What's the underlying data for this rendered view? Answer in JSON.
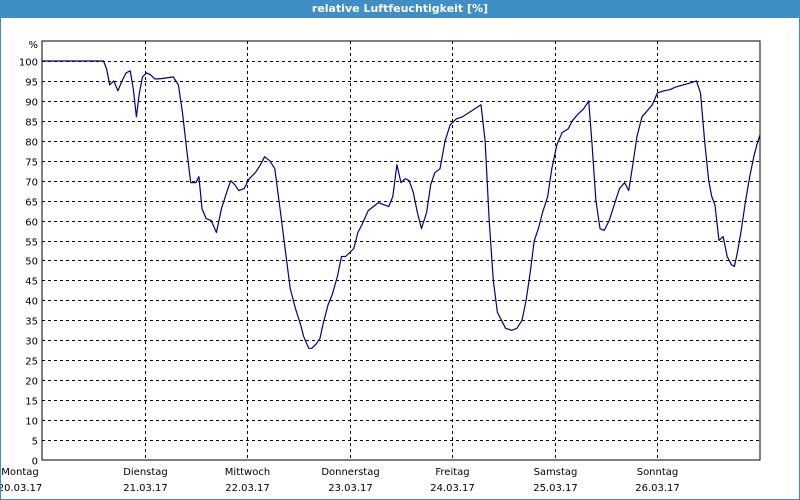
{
  "chart_data": {
    "type": "line",
    "title": "relative Luftfeuchtigkeit [%]",
    "ylabel": "%",
    "ylim": [
      0,
      105
    ],
    "yticks": [
      0,
      5,
      10,
      15,
      20,
      25,
      30,
      35,
      40,
      45,
      50,
      55,
      60,
      65,
      70,
      75,
      80,
      85,
      90,
      95,
      100
    ],
    "grid": true,
    "xlim": [
      0,
      7
    ],
    "x_ticks": [
      {
        "day": "Montag",
        "date": "20.03.17",
        "x": 0
      },
      {
        "day": "Dienstag",
        "date": "21.03.17",
        "x": 1
      },
      {
        "day": "Mittwoch",
        "date": "22.03.17",
        "x": 2
      },
      {
        "day": "Donnerstag",
        "date": "23.03.17",
        "x": 3
      },
      {
        "day": "Freitag",
        "date": "24.03.17",
        "x": 4
      },
      {
        "day": "Samstag",
        "date": "25.03.17",
        "x": 5
      },
      {
        "day": "Sonntag",
        "date": "26.03.17",
        "x": 6
      }
    ],
    "series": [
      {
        "color": "#00008b",
        "points": [
          [
            0,
            100
          ],
          [
            0.6,
            100
          ],
          [
            0.63,
            98
          ],
          [
            0.66,
            94
          ],
          [
            0.7,
            95
          ],
          [
            0.74,
            92.5
          ],
          [
            0.78,
            95
          ],
          [
            0.82,
            97
          ],
          [
            0.86,
            97.5
          ],
          [
            0.89,
            93
          ],
          [
            0.92,
            86
          ],
          [
            0.95,
            92
          ],
          [
            0.98,
            96
          ],
          [
            1.02,
            97
          ],
          [
            1.06,
            96.5
          ],
          [
            1.1,
            95.5
          ],
          [
            1.14,
            95.5
          ],
          [
            1.2,
            95.7
          ],
          [
            1.28,
            96
          ],
          [
            1.33,
            94
          ],
          [
            1.37,
            87
          ],
          [
            1.41,
            78
          ],
          [
            1.45,
            69.5
          ],
          [
            1.5,
            69.5
          ],
          [
            1.53,
            71
          ],
          [
            1.56,
            63
          ],
          [
            1.6,
            60.5
          ],
          [
            1.65,
            60
          ],
          [
            1.7,
            57
          ],
          [
            1.75,
            63
          ],
          [
            1.8,
            67
          ],
          [
            1.84,
            70
          ],
          [
            1.88,
            69
          ],
          [
            1.92,
            67.5
          ],
          [
            1.97,
            68
          ],
          [
            2.02,
            70.5
          ],
          [
            2.08,
            72
          ],
          [
            2.13,
            74
          ],
          [
            2.17,
            76
          ],
          [
            2.22,
            75
          ],
          [
            2.27,
            73
          ],
          [
            2.32,
            63
          ],
          [
            2.37,
            53
          ],
          [
            2.42,
            43
          ],
          [
            2.47,
            38
          ],
          [
            2.52,
            34
          ],
          [
            2.55,
            31
          ],
          [
            2.6,
            28
          ],
          [
            2.63,
            28
          ],
          [
            2.67,
            29
          ],
          [
            2.71,
            30.5
          ],
          [
            2.74,
            34
          ],
          [
            2.79,
            39
          ],
          [
            2.83,
            41.5
          ],
          [
            2.88,
            46
          ],
          [
            2.92,
            51
          ],
          [
            2.96,
            51
          ],
          [
            3.0,
            52
          ],
          [
            3.04,
            53
          ],
          [
            3.08,
            57
          ],
          [
            3.12,
            59
          ],
          [
            3.18,
            62.5
          ],
          [
            3.23,
            63.5
          ],
          [
            3.28,
            64.5
          ],
          [
            3.33,
            64
          ],
          [
            3.38,
            63.5
          ],
          [
            3.42,
            66
          ],
          [
            3.46,
            74
          ],
          [
            3.5,
            69.5
          ],
          [
            3.54,
            70.5
          ],
          [
            3.58,
            70
          ],
          [
            3.62,
            67
          ],
          [
            3.66,
            62
          ],
          [
            3.7,
            58
          ],
          [
            3.75,
            62
          ],
          [
            3.79,
            69
          ],
          [
            3.83,
            72
          ],
          [
            3.88,
            73
          ],
          [
            3.93,
            80
          ],
          [
            3.98,
            84
          ],
          [
            4.04,
            85.5
          ],
          [
            4.1,
            86
          ],
          [
            4.16,
            87
          ],
          [
            4.22,
            88
          ],
          [
            4.28,
            89
          ],
          [
            4.32,
            80
          ],
          [
            4.36,
            60
          ],
          [
            4.4,
            45
          ],
          [
            4.44,
            37
          ],
          [
            4.48,
            35
          ],
          [
            4.52,
            33
          ],
          [
            4.58,
            32.5
          ],
          [
            4.63,
            33
          ],
          [
            4.68,
            35
          ],
          [
            4.72,
            40
          ],
          [
            4.76,
            47
          ],
          [
            4.8,
            55
          ],
          [
            4.84,
            58
          ],
          [
            4.88,
            62
          ],
          [
            4.93,
            66
          ],
          [
            4.97,
            73
          ],
          [
            5.02,
            79
          ],
          [
            5.07,
            82
          ],
          [
            5.13,
            83
          ],
          [
            5.17,
            85
          ],
          [
            5.22,
            86.5
          ],
          [
            5.28,
            88
          ],
          [
            5.33,
            90
          ],
          [
            5.36,
            80
          ],
          [
            5.4,
            65
          ],
          [
            5.44,
            58
          ],
          [
            5.48,
            57.5
          ],
          [
            5.53,
            60
          ],
          [
            5.58,
            64
          ],
          [
            5.63,
            68
          ],
          [
            5.68,
            69.5
          ],
          [
            5.72,
            67.5
          ],
          [
            5.76,
            74
          ],
          [
            5.8,
            81
          ],
          [
            5.85,
            86
          ],
          [
            5.9,
            87.5
          ],
          [
            5.95,
            89
          ],
          [
            6.0,
            92
          ],
          [
            6.06,
            92.5
          ],
          [
            6.12,
            92.8
          ],
          [
            6.18,
            93.5
          ],
          [
            6.25,
            94
          ],
          [
            6.32,
            94.5
          ],
          [
            6.38,
            95
          ],
          [
            6.42,
            92
          ],
          [
            6.46,
            80
          ],
          [
            6.5,
            70
          ],
          [
            6.53,
            66
          ],
          [
            6.56,
            64
          ],
          [
            6.6,
            55
          ],
          [
            6.64,
            56
          ],
          [
            6.68,
            51
          ],
          [
            6.72,
            49
          ],
          [
            6.75,
            48.5
          ],
          [
            6.78,
            52
          ],
          [
            6.82,
            58
          ],
          [
            6.86,
            65
          ],
          [
            6.9,
            71
          ],
          [
            6.94,
            76
          ],
          [
            6.97,
            79
          ],
          [
            7.0,
            81.5
          ]
        ]
      }
    ]
  }
}
